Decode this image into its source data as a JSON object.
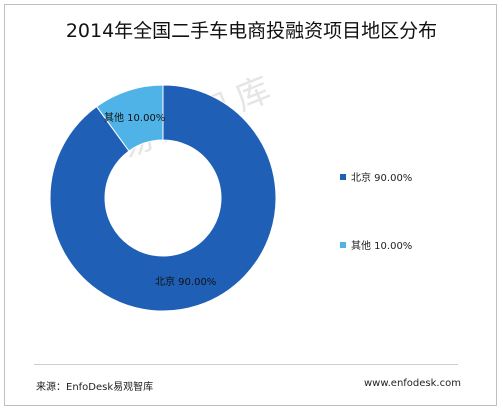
{
  "chart_data": {
    "type": "pie",
    "title": "2014年全国二手车电商投融资项目地区分布",
    "categories": [
      "北京",
      "其他"
    ],
    "values": [
      90.0,
      10.0
    ],
    "labels": [
      "北京 90.00%",
      "其他 10.00%"
    ],
    "legend": {
      "placement": "right",
      "entries": [
        "北京 90.00%",
        "其他 10.00%"
      ]
    },
    "colors": [
      "#1F5FB5",
      "#4FB3E8"
    ],
    "donut": true
  },
  "footer": {
    "source": "来源：EnfoDesk易观智库",
    "site": "www.enfodesk.com"
  },
  "watermark": "易观智库"
}
